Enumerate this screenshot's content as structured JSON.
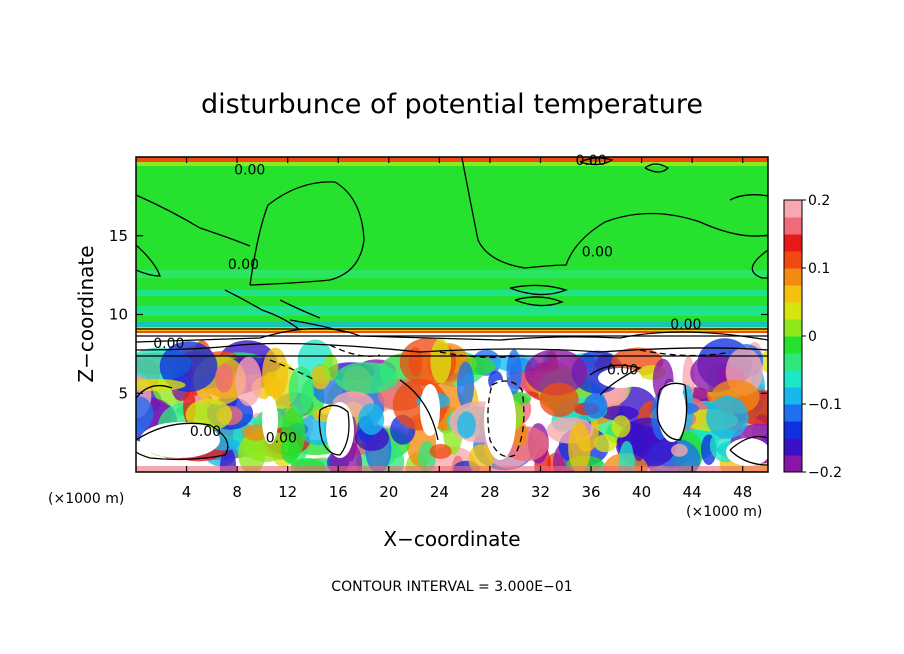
{
  "chart_data": {
    "type": "heatmap",
    "title": "disturbunce of potential temperature",
    "xlabel": "X−coordinate",
    "ylabel": "Z−coordinate",
    "x_unit_left": "(×1000 m)",
    "x_unit_right": "(×1000 m)",
    "xlim": [
      0,
      50
    ],
    "ylim": [
      0,
      20
    ],
    "x_ticks": [
      4,
      8,
      12,
      16,
      20,
      24,
      28,
      32,
      36,
      40,
      44,
      48
    ],
    "y_ticks": [
      5,
      10,
      15
    ],
    "colorbar": {
      "range": [
        -0.2,
        0.2
      ],
      "tick_values": [
        0.2,
        0.1,
        0,
        -0.1,
        -0.2
      ],
      "tick_labels": [
        "0.2",
        "0.1",
        "0",
        "−0.1",
        "−0.2"
      ],
      "colors": [
        "#8a16a8",
        "#3a10c8",
        "#1030e0",
        "#1f6ff0",
        "#16b8ee",
        "#1ee6c8",
        "#2ee87a",
        "#26e22e",
        "#8ee81c",
        "#d8e410",
        "#f4c20e",
        "#f48a10",
        "#f04a12",
        "#e81a18",
        "#f06a78",
        "#f8a8b0"
      ]
    },
    "contour_interval_text": "CONTOUR INTERVAL = 3.000E−01",
    "contour_labels": [
      {
        "text": "0.00",
        "x": 9.0,
        "z": 19.2
      },
      {
        "text": "0.00",
        "x": 36.0,
        "z": 19.8
      },
      {
        "text": "0.00",
        "x": 8.5,
        "z": 13.2
      },
      {
        "text": "0.00",
        "x": 36.5,
        "z": 14.0
      },
      {
        "text": "0.00",
        "x": 43.5,
        "z": 9.4
      },
      {
        "text": "0.00",
        "x": 2.6,
        "z": 8.2
      },
      {
        "text": "0.00",
        "x": 38.5,
        "z": 6.5
      },
      {
        "text": "0.00",
        "x": 5.5,
        "z": 2.6
      },
      {
        "text": "0.00",
        "x": 11.5,
        "z": 2.2
      }
    ]
  }
}
